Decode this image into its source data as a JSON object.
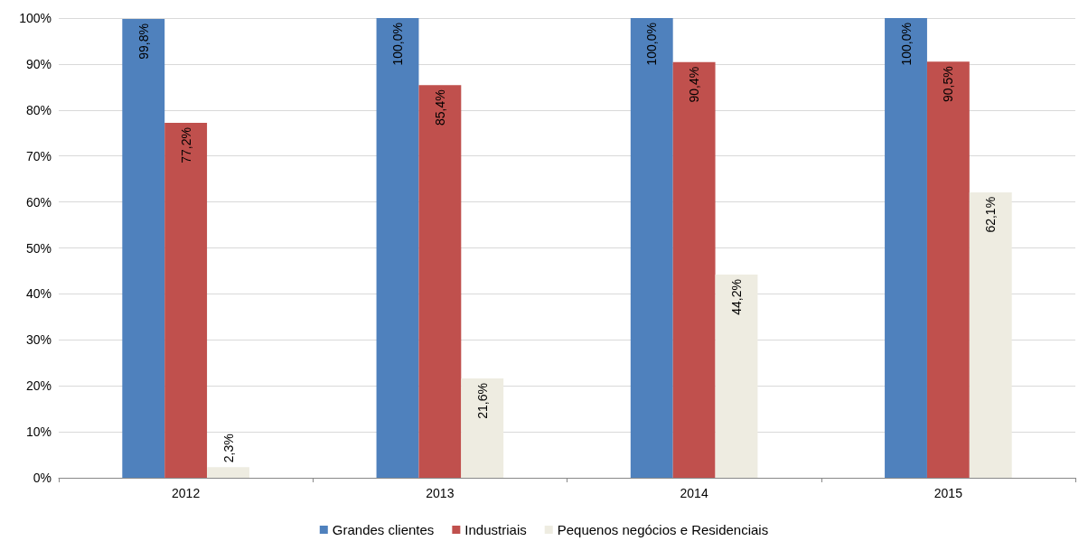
{
  "chart_data": {
    "type": "bar",
    "categories": [
      "2012",
      "2013",
      "2014",
      "2015"
    ],
    "series": [
      {
        "name": "Grandes clientes",
        "color": "#4f81bd",
        "values": [
          99.8,
          100.0,
          100.0,
          100.0
        ],
        "value_labels": [
          "99,8%",
          "100,0%",
          "100,0%",
          "100,0%"
        ]
      },
      {
        "name": "Industriais",
        "color": "#c0504d",
        "values": [
          77.2,
          85.4,
          90.4,
          90.5
        ],
        "value_labels": [
          "77,2%",
          "85,4%",
          "90,4%",
          "90,5%"
        ]
      },
      {
        "name": "Pequenos negócios e Residenciais",
        "color": "#eeece1",
        "values": [
          2.3,
          21.6,
          44.2,
          62.1
        ],
        "value_labels": [
          "2,3%",
          "21,6%",
          "44,2%",
          "62,1%"
        ]
      }
    ],
    "ylim": [
      0,
      100
    ],
    "yticks": [
      {
        "value": 0,
        "label": "0%"
      },
      {
        "value": 10,
        "label": "10%"
      },
      {
        "value": 20,
        "label": "20%"
      },
      {
        "value": 30,
        "label": "30%"
      },
      {
        "value": 40,
        "label": "40%"
      },
      {
        "value": 50,
        "label": "50%"
      },
      {
        "value": 60,
        "label": "60%"
      },
      {
        "value": 70,
        "label": "70%"
      },
      {
        "value": 80,
        "label": "80%"
      },
      {
        "value": 90,
        "label": "90%"
      },
      {
        "value": 100,
        "label": "100%"
      }
    ],
    "grid": "y",
    "legend": "bottom"
  }
}
